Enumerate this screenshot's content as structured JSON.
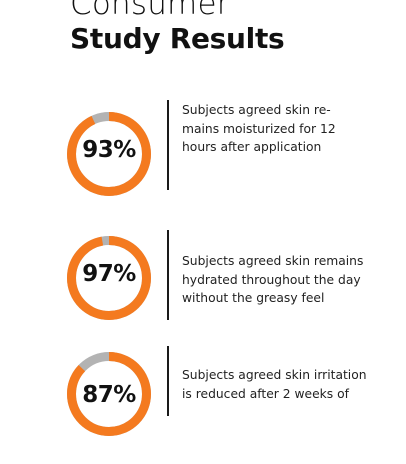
{
  "title": {
    "line1": "Consumer",
    "line2": "Study Results"
  },
  "colors": {
    "accent": "#F47A1F",
    "track": "#B3B3B3",
    "text": "#111111"
  },
  "stats": [
    {
      "percent_text": "93%",
      "percent_value": 93,
      "description": "Subjects agreed skin re-\nmains moisturized for 12\nhours after application"
    },
    {
      "percent_text": "97%",
      "percent_value": 97,
      "description": "Subjects agreed skin remains\nhydrated throughout the day\nwithout the greasy feel"
    },
    {
      "percent_text": "87%",
      "percent_value": 87,
      "description": "Subjects agreed skin irritation\nis reduced after 2 weeks of"
    }
  ]
}
